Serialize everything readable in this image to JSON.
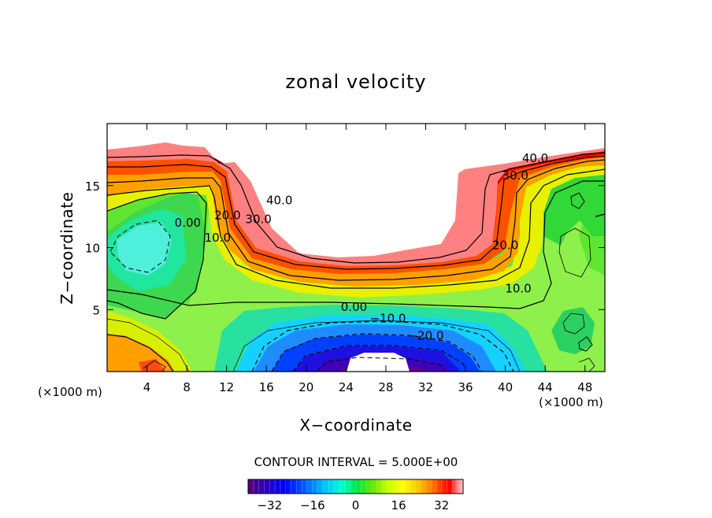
{
  "chart_data": {
    "type": "contour",
    "title": "zonal velocity",
    "xlabel": "X−coordinate",
    "ylabel": "Z−coordinate",
    "x_unit_label": "(×1000 m)",
    "y_unit_label": "(×1000 m)",
    "xlim": [
      0,
      50
    ],
    "ylim": [
      0,
      20
    ],
    "x_ticks": [
      4,
      8,
      12,
      16,
      20,
      24,
      28,
      32,
      36,
      40,
      44,
      48
    ],
    "x_tick_labels": [
      "4",
      "8",
      "12",
      "16",
      "20",
      "24",
      "28",
      "32",
      "36",
      "40",
      "44",
      "48"
    ],
    "y_ticks": [
      5,
      10,
      15
    ],
    "y_tick_labels": [
      "5",
      "10",
      "15"
    ],
    "contour_interval_text": "CONTOUR INTERVAL = 5.000E+00",
    "contour_interval": 5,
    "contour_labels": [
      {
        "text": "40.0",
        "x": 43.0,
        "z": 17.2
      },
      {
        "text": "30.0",
        "x": 41.0,
        "z": 15.8
      },
      {
        "text": "40.0",
        "x": 17.3,
        "z": 13.8
      },
      {
        "text": "30.0",
        "x": 15.2,
        "z": 12.3
      },
      {
        "text": "20.0",
        "x": 12.1,
        "z": 12.6
      },
      {
        "text": "10.0",
        "x": 11.1,
        "z": 10.8
      },
      {
        "text": "0.00",
        "x": 8.1,
        "z": 12.0
      },
      {
        "text": "20.0",
        "x": 40.0,
        "z": 10.2
      },
      {
        "text": "10.0",
        "x": 41.3,
        "z": 6.7
      },
      {
        "text": "0.00",
        "x": 24.8,
        "z": 5.2
      },
      {
        "text": "−10.0",
        "x": 28.2,
        "z": 4.3
      },
      {
        "text": "−20.0",
        "x": 32.0,
        "z": 2.9
      }
    ],
    "colorbar": {
      "range": [
        -40,
        40
      ],
      "ticks": [
        -32,
        -16,
        0,
        16,
        32
      ],
      "tick_labels": [
        "−32",
        "−16",
        "0",
        "16",
        "32"
      ],
      "colors": [
        "#5a007a",
        "#3300b4",
        "#0000ff",
        "#0064ff",
        "#00c8ff",
        "#00ffc8",
        "#00e650",
        "#64e600",
        "#c8ff00",
        "#ffff00",
        "#ffc800",
        "#ff8000",
        "#ff3000",
        "#ff0000",
        "#ff7878",
        "#ffcccc"
      ]
    }
  }
}
